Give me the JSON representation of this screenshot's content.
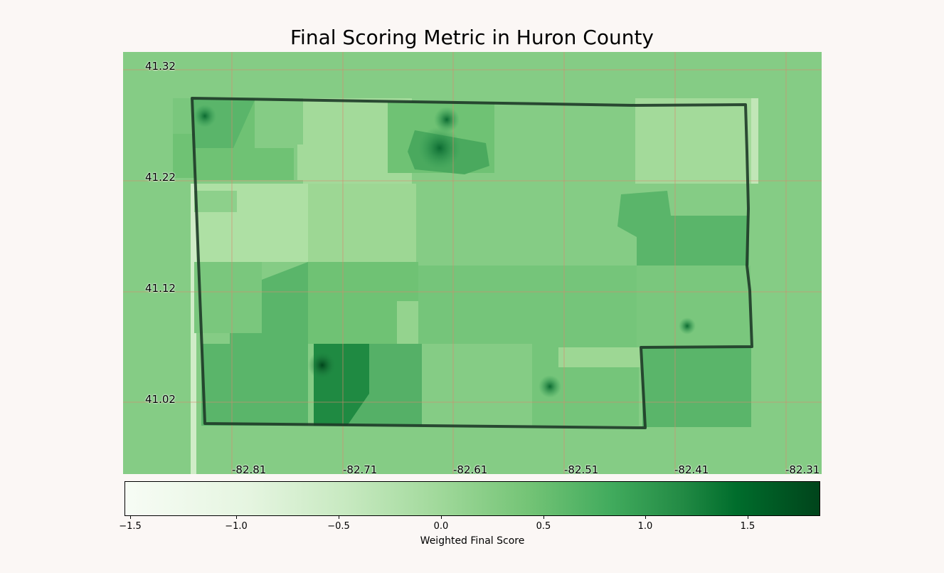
{
  "title": "Final Scoring Metric in Huron County",
  "colorbar": {
    "label": "Weighted Final Score",
    "ticks": [
      "−1.5",
      "−1.0",
      "−0.5",
      "0.0",
      "0.5",
      "1.0",
      "1.5"
    ],
    "min": -1.6,
    "max": 1.85,
    "colormap": "Greens"
  },
  "map": {
    "lat_labels": [
      "41.32",
      "41.22",
      "41.12",
      "41.02"
    ],
    "lon_labels": [
      "-82.81",
      "-82.71",
      "-82.61",
      "-82.51",
      "-82.41",
      "-82.31"
    ],
    "gridline_color": "#d9886f",
    "boundary_color": "#1e3a28"
  }
}
